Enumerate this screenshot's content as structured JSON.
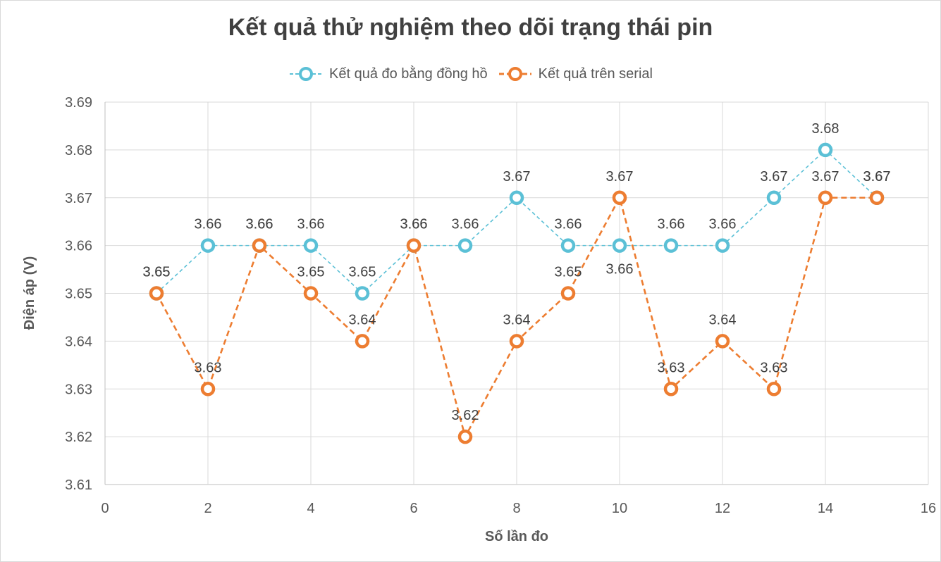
{
  "chart_data": {
    "type": "line",
    "title": "Kết quả thử nghiệm theo dõi trạng thái pin",
    "xlabel": "Số lần đo",
    "ylabel": "Điện áp (V)",
    "xlim": [
      0,
      16
    ],
    "ylim": [
      3.61,
      3.69
    ],
    "x_ticks": [
      0,
      2,
      4,
      6,
      8,
      10,
      12,
      14,
      16
    ],
    "y_ticks": [
      3.61,
      3.62,
      3.63,
      3.64,
      3.65,
      3.66,
      3.67,
      3.68,
      3.69
    ],
    "grid": true,
    "legend_position": "top",
    "series": [
      {
        "name": "Kết quả đo bằng đồng hồ",
        "color": "#5bc0d6",
        "line_style": "dashed",
        "x": [
          1,
          2,
          3,
          4,
          5,
          6,
          7,
          8,
          9,
          10,
          11,
          12,
          13,
          14,
          15
        ],
        "y": [
          3.65,
          3.66,
          3.66,
          3.66,
          3.65,
          3.66,
          3.66,
          3.67,
          3.66,
          3.66,
          3.66,
          3.66,
          3.67,
          3.68,
          3.67
        ],
        "labels": [
          "3.65",
          "3.66",
          "3.66",
          "3.66",
          "3.65",
          "3.66",
          "3.66",
          "3.67",
          "3.66",
          "3.66",
          "3.66",
          "3.66",
          "3.67",
          "3.68",
          "3.67"
        ]
      },
      {
        "name": "Kết quả trên serial",
        "color": "#ed7d31",
        "line_style": "dashed",
        "x": [
          1,
          2,
          3,
          4,
          5,
          6,
          7,
          8,
          9,
          10,
          11,
          12,
          13,
          14,
          15
        ],
        "y": [
          3.65,
          3.63,
          3.66,
          3.65,
          3.64,
          3.66,
          3.62,
          3.64,
          3.65,
          3.67,
          3.63,
          3.64,
          3.63,
          3.67,
          3.67
        ],
        "labels": [
          "3.65",
          "3.63",
          "3.66",
          "3.65",
          "3.64",
          "3.66",
          "3.62",
          "3.64",
          "3.65",
          "3.67",
          "3.63",
          "3.64",
          "3.63",
          "3.67",
          "3.67"
        ]
      }
    ]
  }
}
